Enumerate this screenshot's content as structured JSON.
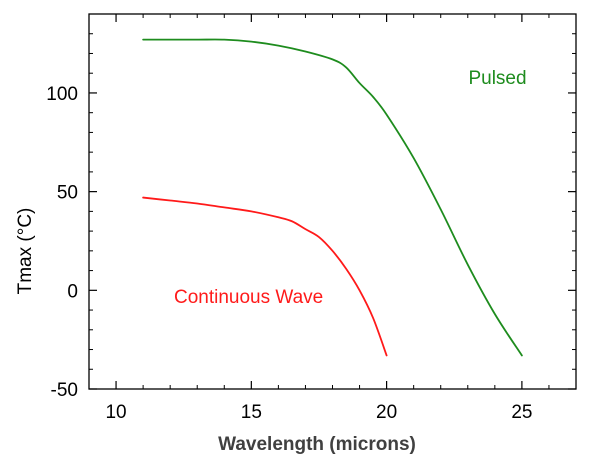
{
  "chart_data": {
    "type": "line",
    "xlabel": "Wavelength (microns)",
    "ylabel": "Tmax (°C)",
    "xlim": [
      9,
      27
    ],
    "ylim": [
      -50,
      140
    ],
    "xticks": [
      10,
      15,
      20,
      25
    ],
    "yticks": [
      -50,
      0,
      50,
      100
    ],
    "xtick_labels": [
      "10",
      "15",
      "20",
      "25"
    ],
    "ytick_labels": [
      "-50",
      "0",
      "50",
      "100"
    ],
    "grid": false,
    "series": [
      {
        "name": "Pulsed",
        "color": "#1e8c1e",
        "x": [
          11,
          12,
          13,
          14,
          15,
          16,
          17,
          18,
          18.5,
          19,
          19.5,
          20,
          21,
          22,
          23,
          24,
          25
        ],
        "y": [
          127,
          127,
          127,
          127,
          126,
          124,
          121,
          117,
          113,
          105,
          98,
          89,
          67,
          41,
          13,
          -12,
          -33
        ]
      },
      {
        "name": "Continuous Wave",
        "color": "#ff1a1a",
        "x": [
          11,
          12,
          13,
          14,
          15,
          16,
          16.5,
          17,
          17.5,
          18,
          18.5,
          19,
          19.5,
          20
        ],
        "y": [
          47,
          45.5,
          44,
          42,
          40,
          37,
          35,
          31,
          27,
          20,
          11,
          0,
          -14,
          -33
        ]
      }
    ]
  }
}
